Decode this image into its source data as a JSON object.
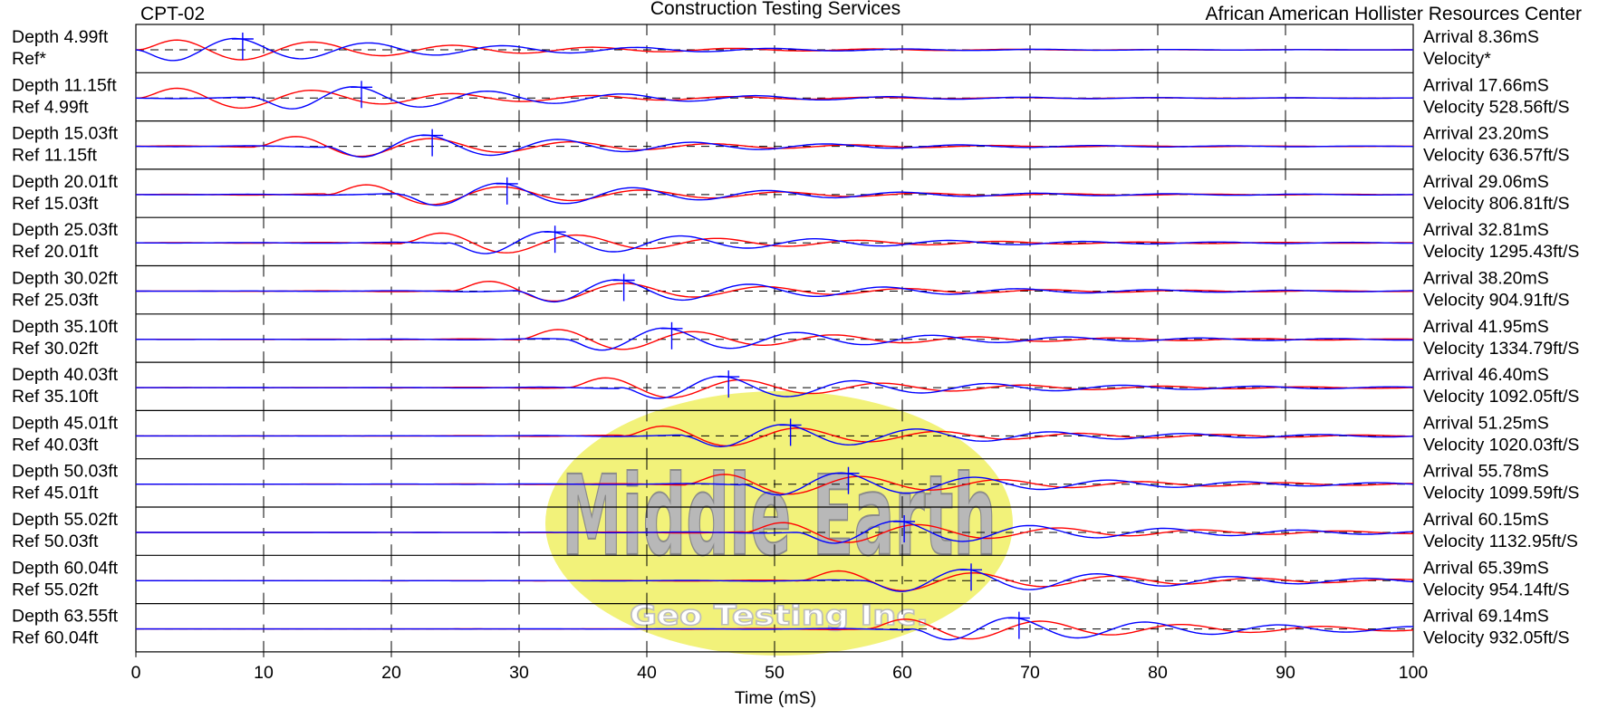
{
  "header": {
    "sounding_id": "CPT-02",
    "company": "Construction Testing Services",
    "project": "African American Hollister Resources Center"
  },
  "watermark": {
    "line1": "Middle Earth",
    "line2": "Geo Testing Inc."
  },
  "colors": {
    "depth_trace": "#0000ff",
    "ref_trace": "#ff0000",
    "arrival_marker": "#0000ff",
    "grid": "#000000",
    "zero_line": "#000000",
    "watermark_fill": "#f2f27a",
    "watermark_text": "#b8b8b8"
  },
  "chart_data": {
    "type": "line",
    "title": "",
    "xlabel": "Time (mS)",
    "xlim": [
      0,
      100
    ],
    "xticks": [
      "0",
      "10",
      "20",
      "30",
      "40",
      "50",
      "60",
      "70",
      "80",
      "90",
      "100"
    ],
    "rows": [
      {
        "depth_label": "Depth 4.99ft",
        "ref_label": "Ref*",
        "arrival_label": "Arrival 8.36mS",
        "velocity_label": "Velocity*",
        "arrival_ms": 8.36
      },
      {
        "depth_label": "Depth 11.15ft",
        "ref_label": "Ref 4.99ft",
        "arrival_label": "Arrival 17.66mS",
        "velocity_label": "Velocity 528.56ft/S",
        "arrival_ms": 17.66
      },
      {
        "depth_label": "Depth 15.03ft",
        "ref_label": "Ref 11.15ft",
        "arrival_label": "Arrival 23.20mS",
        "velocity_label": "Velocity 636.57ft/S",
        "arrival_ms": 23.2
      },
      {
        "depth_label": "Depth 20.01ft",
        "ref_label": "Ref 15.03ft",
        "arrival_label": "Arrival 29.06mS",
        "velocity_label": "Velocity 806.81ft/S",
        "arrival_ms": 29.06
      },
      {
        "depth_label": "Depth 25.03ft",
        "ref_label": "Ref 20.01ft",
        "arrival_label": "Arrival 32.81mS",
        "velocity_label": "Velocity 1295.43ft/S",
        "arrival_ms": 32.81
      },
      {
        "depth_label": "Depth 30.02ft",
        "ref_label": "Ref 25.03ft",
        "arrival_label": "Arrival 38.20mS",
        "velocity_label": "Velocity 904.91ft/S",
        "arrival_ms": 38.2
      },
      {
        "depth_label": "Depth 35.10ft",
        "ref_label": "Ref 30.02ft",
        "arrival_label": "Arrival 41.95mS",
        "velocity_label": "Velocity 1334.79ft/S",
        "arrival_ms": 41.95
      },
      {
        "depth_label": "Depth 40.03ft",
        "ref_label": "Ref 35.10ft",
        "arrival_label": "Arrival 46.40mS",
        "velocity_label": "Velocity 1092.05ft/S",
        "arrival_ms": 46.4
      },
      {
        "depth_label": "Depth 45.01ft",
        "ref_label": "Ref 40.03ft",
        "arrival_label": "Arrival 51.25mS",
        "velocity_label": "Velocity 1020.03ft/S",
        "arrival_ms": 51.25
      },
      {
        "depth_label": "Depth 50.03ft",
        "ref_label": "Ref 45.01ft",
        "arrival_label": "Arrival 55.78mS",
        "velocity_label": "Velocity 1099.59ft/S",
        "arrival_ms": 55.78
      },
      {
        "depth_label": "Depth 55.02ft",
        "ref_label": "Ref 50.03ft",
        "arrival_label": "Arrival 60.15mS",
        "velocity_label": "Velocity 1132.95ft/S",
        "arrival_ms": 60.15
      },
      {
        "depth_label": "Depth 60.04ft",
        "ref_label": "Ref 55.02ft",
        "arrival_label": "Arrival 65.39mS",
        "velocity_label": "Velocity 954.14ft/S",
        "arrival_ms": 65.39
      },
      {
        "depth_label": "Depth 63.55ft",
        "ref_label": "Ref 60.04ft",
        "arrival_label": "Arrival 69.14mS",
        "velocity_label": "Velocity 932.05ft/S",
        "arrival_ms": 69.14
      }
    ]
  }
}
